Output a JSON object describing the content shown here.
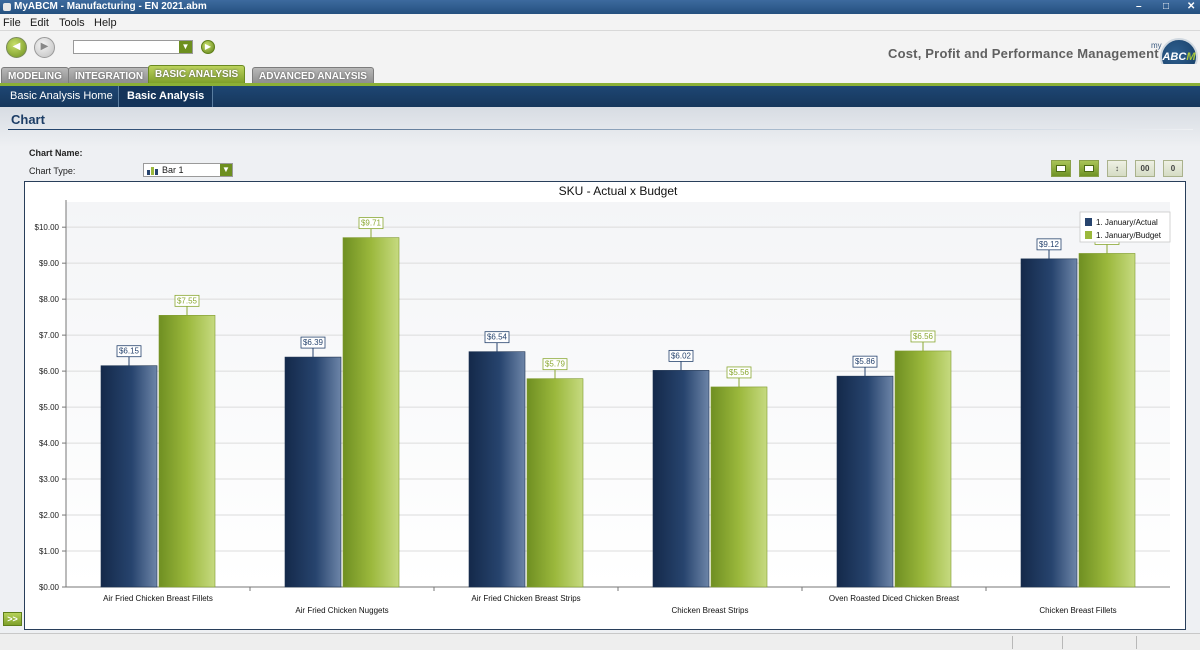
{
  "window": {
    "title": "MyABCM - Manufacturing - EN 2021.abm",
    "controls": [
      "–",
      "□",
      "✕"
    ]
  },
  "menu": [
    "File",
    "Edit",
    "Tools",
    "Help"
  ],
  "toolbar": {
    "back_icon": "back-arrow-icon",
    "forward_icon": "forward-arrow-icon",
    "tagline": "Cost, Profit and Performance Management",
    "logo_prefix": "my",
    "logo_text": "ABC",
    "logo_accent": "M"
  },
  "module_tabs": [
    {
      "label": "MODELING",
      "active": false
    },
    {
      "label": "INTEGRATION",
      "active": false
    },
    {
      "label": "BASIC ANALYSIS",
      "active": true
    },
    {
      "label": "ADVANCED ANALYSIS",
      "active": false
    }
  ],
  "sub_tabs": [
    {
      "label": "Basic Analysis Home",
      "active": false
    },
    {
      "label": "Basic Analysis",
      "active": true
    }
  ],
  "page": {
    "section_title": "Chart",
    "chart_name_label": "Chart Name:",
    "chart_type_label": "Chart Type:",
    "chart_type_value": "Bar 1",
    "tool_buttons": [
      {
        "icon": "table-view-icon",
        "glyph": ""
      },
      {
        "icon": "chart-view-icon",
        "glyph": ""
      },
      {
        "icon": "sort-icon",
        "glyph": "↕"
      },
      {
        "icon": "decimal-format-icon",
        "glyph": "00"
      },
      {
        "icon": "zero-values-icon",
        "glyph": "0"
      }
    ],
    "expand_label": ">>"
  },
  "colors": {
    "actual": "#27446e",
    "budget": "#9bb83c",
    "accent_green": "#8bb036",
    "nav_blue": "#1e4673"
  },
  "chart_data": {
    "type": "bar",
    "title": "SKU - Actual x Budget",
    "categories": [
      "Air Fried Chicken Breast Fillets",
      "Air Fried Chicken Nuggets",
      "Air Fried Chicken Breast Strips",
      "Chicken Breast Strips",
      "Oven Roasted Diced Chicken Breast",
      "Chicken Breast Fillets"
    ],
    "series": [
      {
        "name": "1. January/Actual",
        "values": [
          6.15,
          6.39,
          6.54,
          6.02,
          5.86,
          9.12
        ],
        "labels": [
          "$6.15",
          "$6.39",
          "$6.54",
          "$6.02",
          "$5.86",
          "$9.12"
        ]
      },
      {
        "name": "1. January/Budget",
        "values": [
          7.55,
          9.71,
          5.79,
          5.56,
          6.56,
          9.27
        ],
        "labels": [
          "$7.55",
          "$9.71",
          "$5.79",
          "$5.56",
          "$6.56",
          "$9.27"
        ]
      }
    ],
    "ylim": [
      0,
      10.7
    ],
    "yticks": [
      0,
      1,
      2,
      3,
      4,
      5,
      6,
      7,
      8,
      9,
      10
    ],
    "ytick_labels": [
      "$0.00",
      "$1.00",
      "$2.00",
      "$3.00",
      "$4.00",
      "$5.00",
      "$6.00",
      "$7.00",
      "$8.00",
      "$9.00",
      "$10.00"
    ],
    "grid": true,
    "legend": "top-right"
  }
}
